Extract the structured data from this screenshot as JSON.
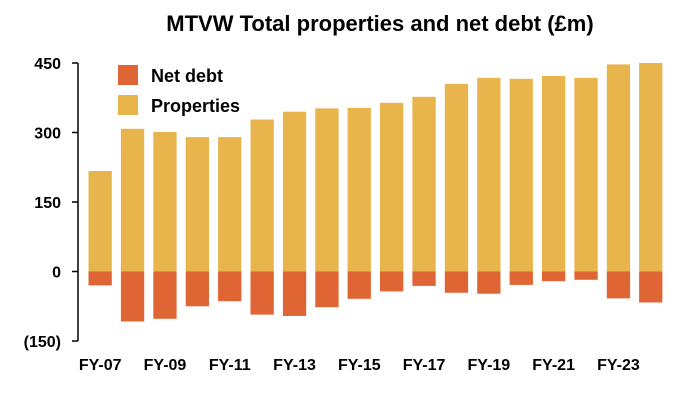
{
  "chart_data": {
    "type": "bar",
    "title": "MTVW Total properties and net debt (£m)",
    "xlabel": "",
    "ylabel": "",
    "ylim": [
      -150,
      450
    ],
    "yticks": [
      450,
      300,
      150,
      0,
      -150
    ],
    "ytick_labels": [
      "450",
      "300",
      "150",
      "0",
      "(150)"
    ],
    "categories": [
      "FY-07",
      "FY-08",
      "FY-09",
      "FY-10",
      "FY-11",
      "FY-12",
      "FY-13",
      "FY-14",
      "FY-15",
      "FY-16",
      "FY-17",
      "FY-18",
      "FY-19",
      "FY-20",
      "FY-21",
      "FY-22",
      "FY-23",
      "FY-24"
    ],
    "xtick_labels": [
      "FY-07",
      "FY-09",
      "FY-11",
      "FY-13",
      "FY-15",
      "FY-17",
      "FY-19",
      "FY-21",
      "FY-23"
    ],
    "xtick_categories": [
      "FY-07",
      "FY-09",
      "FY-11",
      "FY-13",
      "FY-15",
      "FY-17",
      "FY-19",
      "FY-21",
      "FY-23"
    ],
    "series": [
      {
        "name": "Net debt",
        "color": "#e06535",
        "values": [
          -30,
          -108,
          -102,
          -75,
          -64,
          -93,
          -96,
          -77,
          -59,
          -43,
          -31,
          -46,
          -48,
          -29,
          -21,
          -18,
          -58,
          -67
        ]
      },
      {
        "name": "Properties",
        "color": "#e8b54c",
        "values": [
          217,
          308,
          301,
          290,
          290,
          328,
          345,
          352,
          353,
          364,
          377,
          405,
          418,
          416,
          422,
          418,
          447,
          450
        ]
      }
    ],
    "grid": false,
    "legend_position": "top-left"
  }
}
